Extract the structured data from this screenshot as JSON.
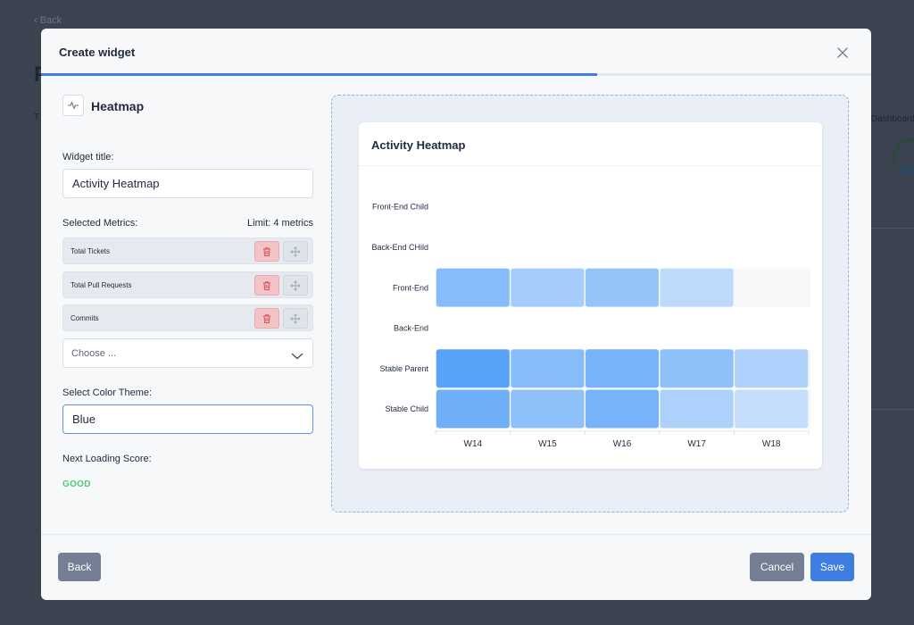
{
  "background": {
    "back_link": "‹ Back",
    "title_fragment": "P",
    "left_fragment": "T",
    "dashboard_fragment": "Dashboard",
    "score_fragment": "GO"
  },
  "modal": {
    "title": "Create widget",
    "close_icon": "close-icon",
    "step_progress_percent": 67
  },
  "widget_type": {
    "icon": "activity-icon",
    "name": "Heatmap"
  },
  "form": {
    "title_label": "Widget title:",
    "title_value": "Activity Heatmap",
    "metrics_label": "Selected Metrics:",
    "metrics_limit": "Limit: 4 metrics",
    "metrics": [
      {
        "label": "Total Tickets"
      },
      {
        "label": "Total Pull Requests"
      },
      {
        "label": "Commits"
      }
    ],
    "choose_placeholder": "Choose ...",
    "color_theme_label": "Select Color Theme:",
    "color_theme_value": "Blue",
    "score_label": "Next Loading Score:",
    "score_value": "GOOD",
    "score_color": "#4ccc76"
  },
  "preview": {
    "card_title": "Activity Heatmap"
  },
  "chart_data": {
    "type": "heatmap",
    "title": "Activity Heatmap",
    "color_theme": "Blue",
    "rows": [
      "Front-End Child",
      "Back-End CHild",
      "Front-End",
      "Back-End",
      "Stable Parent",
      "Stable Child"
    ],
    "columns": [
      "W14",
      "W15",
      "W16",
      "W17",
      "W18"
    ],
    "values": [
      [
        null,
        null,
        null,
        null,
        null
      ],
      [
        null,
        null,
        null,
        null,
        null
      ],
      [
        0.6,
        0.4,
        0.5,
        0.25,
        0
      ],
      [
        null,
        null,
        null,
        null,
        null
      ],
      [
        0.9,
        0.6,
        0.7,
        0.55,
        0.35
      ],
      [
        0.75,
        0.55,
        0.7,
        0.35,
        0.2
      ]
    ],
    "value_scale": "relative intensity 0–1 (no legend shown)"
  },
  "footer": {
    "back_label": "Back",
    "cancel_label": "Cancel",
    "save_label": "Save"
  },
  "colors": {
    "accent": "#3f7de0",
    "danger_bg": "#f2c3c7",
    "secondary_button": "#747f95"
  }
}
